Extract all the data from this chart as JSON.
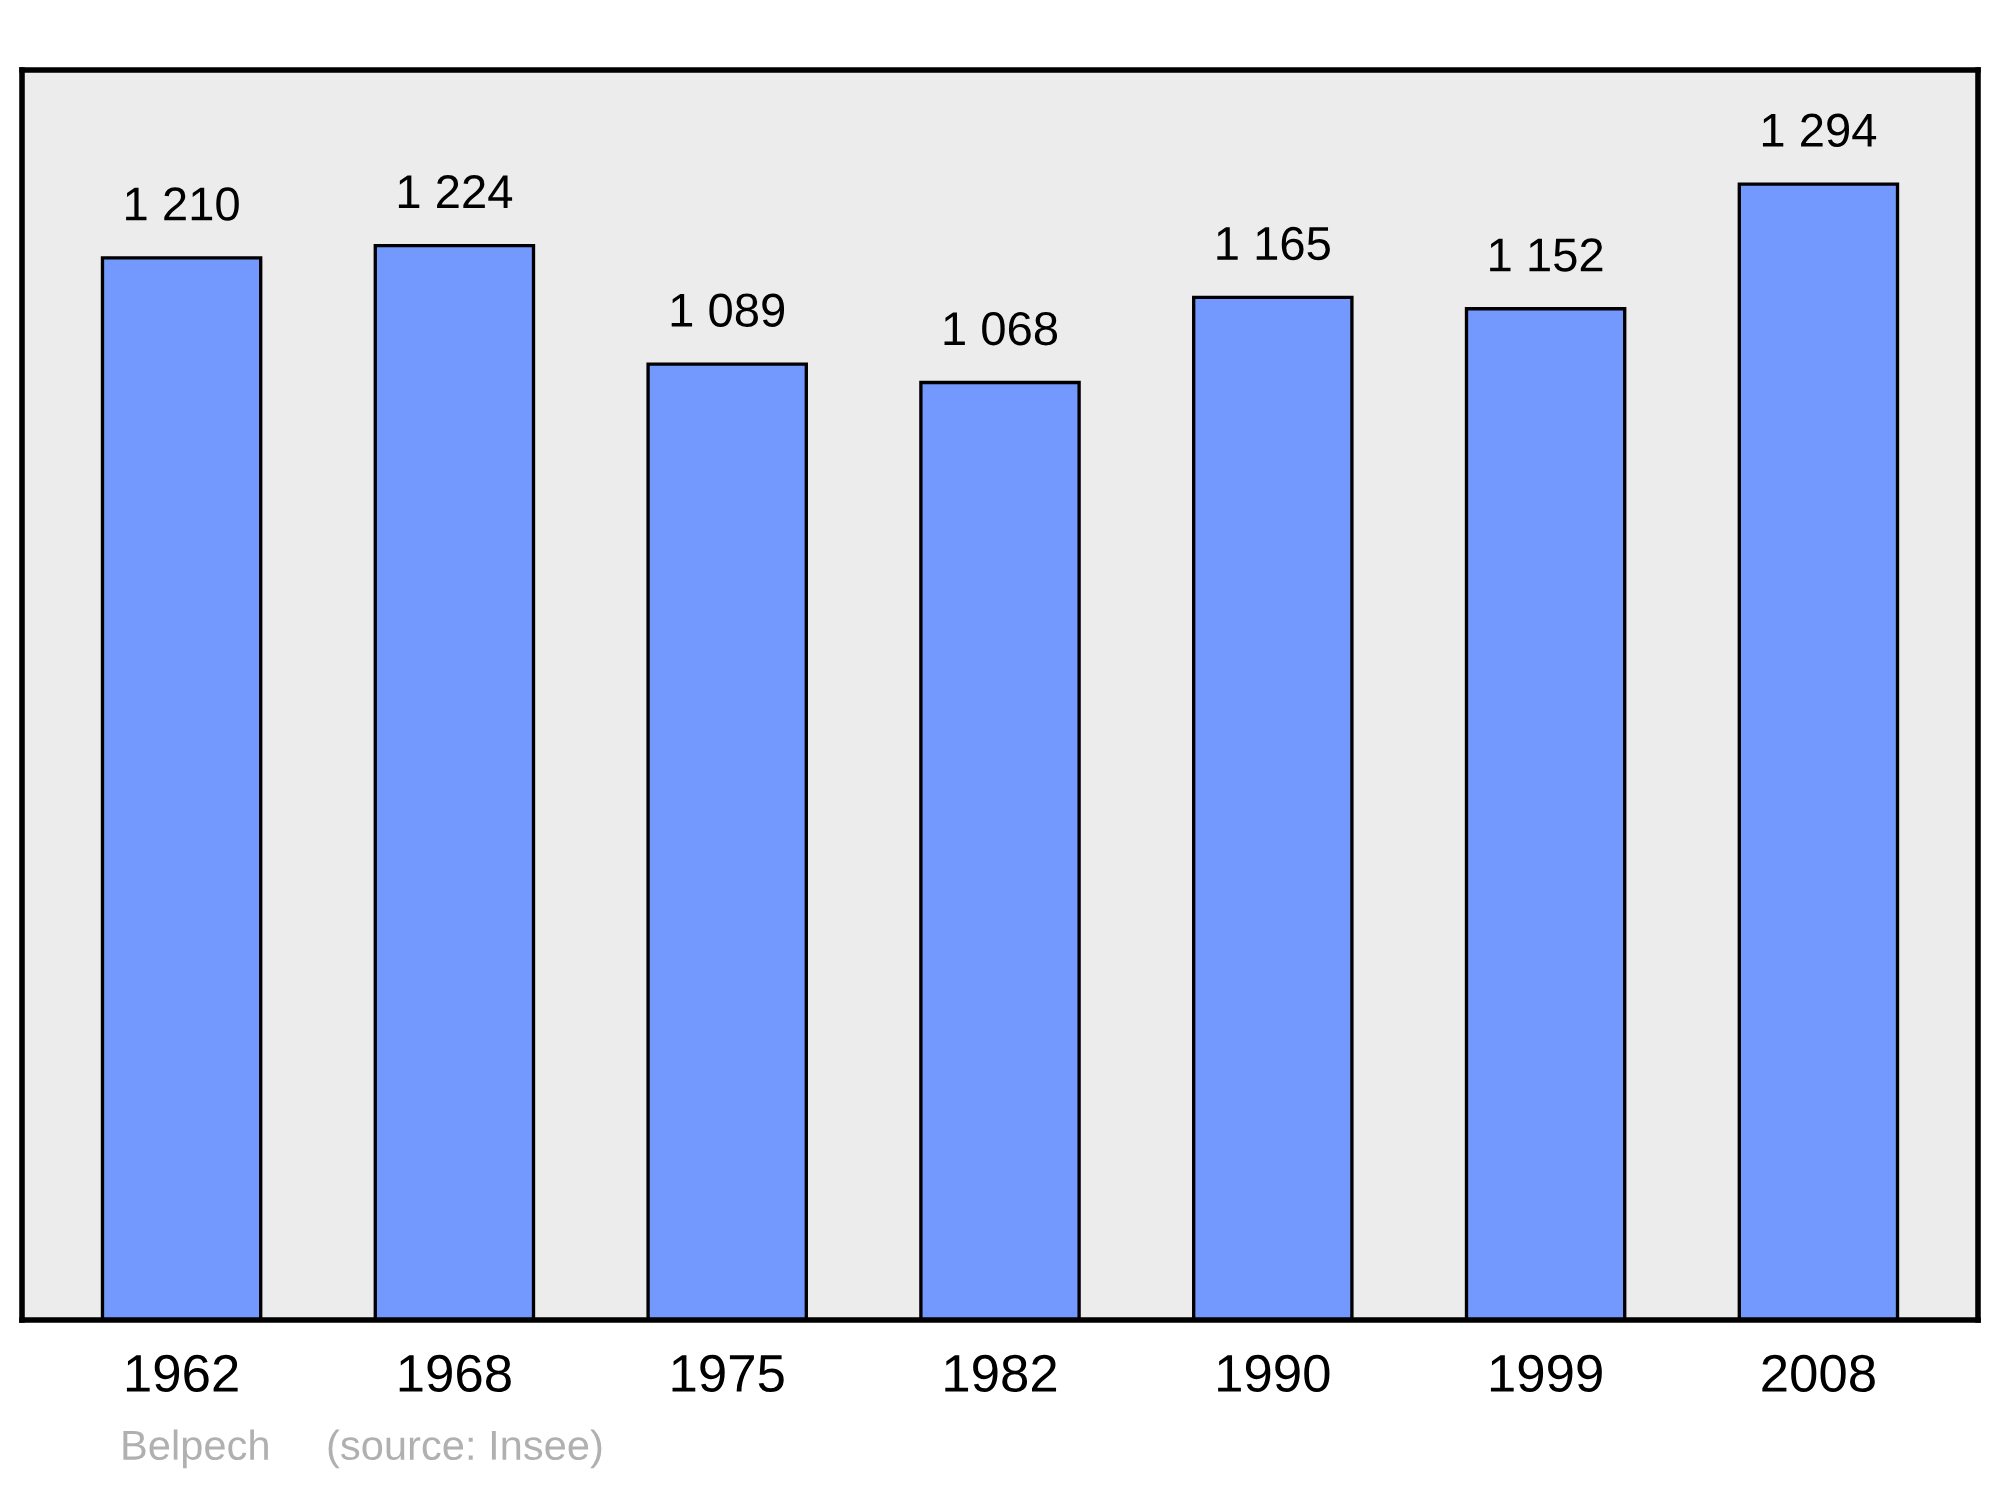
{
  "chart_data": {
    "type": "bar",
    "categories": [
      "1962",
      "1968",
      "1975",
      "1982",
      "1990",
      "1999",
      "2008"
    ],
    "values": [
      1210,
      1224,
      1089,
      1068,
      1165,
      1152,
      1294
    ],
    "value_labels": [
      "1 210",
      "1 224",
      "1 089",
      "1 068",
      "1 165",
      "1 152",
      "1 294"
    ],
    "color": "#7399ff",
    "ylim": [
      0,
      1424
    ],
    "grid": false,
    "legend": false,
    "annotations": [
      "Belpech",
      "(source: Insee)"
    ]
  }
}
